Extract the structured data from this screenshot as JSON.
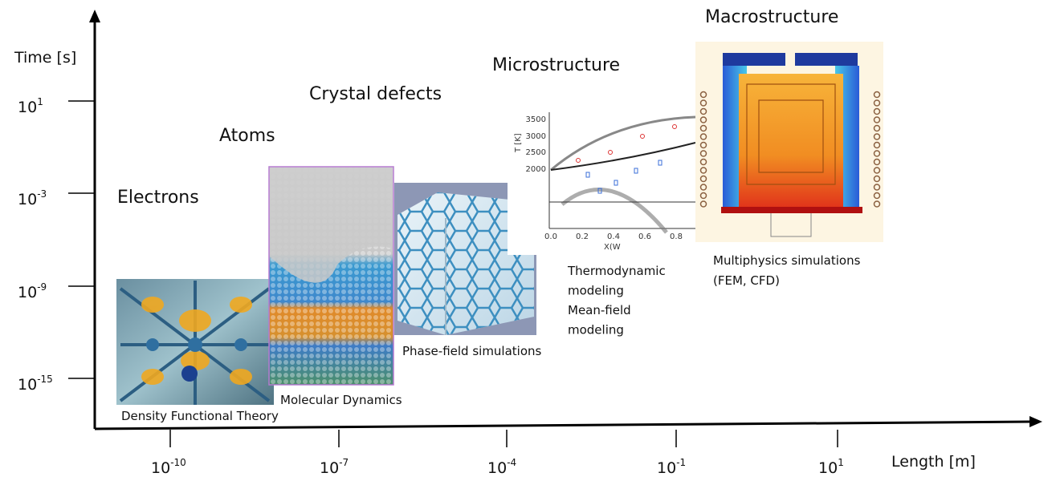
{
  "axes": {
    "y_label": "Time [s]",
    "x_label": "Length [m]",
    "y_ticks": [
      {
        "base": "10",
        "exponent": "1"
      },
      {
        "base": "10",
        "exponent": "-3"
      },
      {
        "base": "10",
        "exponent": "-9"
      },
      {
        "base": "10",
        "exponent": "-15"
      }
    ],
    "x_ticks": [
      {
        "base": "10",
        "exponent": "-10"
      },
      {
        "base": "10",
        "exponent": "-7"
      },
      {
        "base": "10",
        "exponent": "-4"
      },
      {
        "base": "10",
        "exponent": "-1"
      },
      {
        "base": "10",
        "exponent": "1"
      }
    ]
  },
  "scales": [
    {
      "title": "Electrons",
      "method": [
        "Density Functional Theory"
      ]
    },
    {
      "title": "Atoms",
      "method": [
        "Molecular Dynamics"
      ]
    },
    {
      "title": "Crystal defects",
      "method": [
        "Phase-field simulations"
      ]
    },
    {
      "title": "Microstructure",
      "method": [
        "Thermodynamic",
        "modeling",
        "Mean-field",
        "modeling"
      ]
    },
    {
      "title": "Macrostructure",
      "method": [
        "Multiphysics simulations",
        "(FEM, CFD)"
      ]
    }
  ],
  "inset_plot": {
    "y_label": "T [K]",
    "x_label": "X(W",
    "y_ticks": [
      "3500",
      "3000",
      "2500",
      "2000"
    ],
    "x_ticks": [
      "0.0",
      "0.2",
      "0.4",
      "0.6",
      "0.8"
    ]
  }
}
